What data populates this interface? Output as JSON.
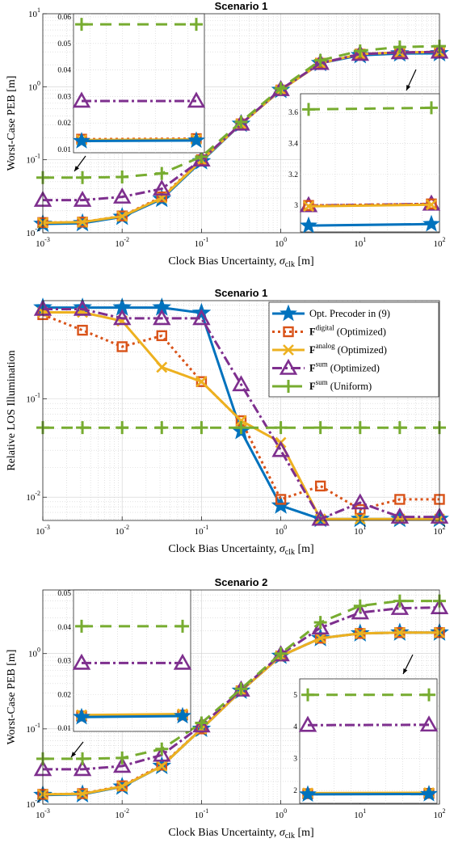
{
  "colors": {
    "opt": "#0072BD",
    "digital": "#D95319",
    "analog": "#EDB120",
    "sum_opt": "#7E2F8E",
    "sum_uni": "#77AC30"
  },
  "legend": {
    "items": [
      {
        "key": "opt",
        "main": "Opt. Precoder in (9)",
        "sup": "",
        "suffix": ""
      },
      {
        "key": "digital",
        "main": "F",
        "sup": "digital",
        "suffix": " (Optimized)"
      },
      {
        "key": "analog",
        "main": "F",
        "sup": "analog",
        "suffix": " (Optimized)"
      },
      {
        "key": "sum_opt",
        "main": "F",
        "sup": "sum",
        "suffix": " (Optimized)"
      },
      {
        "key": "sum_uni",
        "main": "F",
        "sup": "sum",
        "suffix": " (Uniform)"
      }
    ]
  },
  "chart_data": [
    {
      "type": "line",
      "title": "Scenario 1",
      "xlabel": "Clock Bias Uncertainty, σ_clk [m]",
      "ylabel": "Worst-Case PEB [m]",
      "x_scale": "log",
      "y_scale": "log",
      "xlim": [
        0.001,
        100
      ],
      "ylim": [
        0.01,
        10
      ],
      "x_ticks": [
        0.001,
        0.01,
        0.1,
        1,
        10,
        100
      ],
      "y_ticks": [
        0.01,
        0.1,
        1,
        10
      ],
      "grid": true,
      "x": [
        0.001,
        0.00316,
        0.01,
        0.0316,
        0.1,
        0.316,
        1,
        3.16,
        10,
        31.6,
        100
      ],
      "series": [
        {
          "key": "opt",
          "marker": "star",
          "values": [
            0.0132,
            0.0135,
            0.0165,
            0.029,
            0.095,
            0.31,
            0.9,
            2.1,
            2.7,
            2.85,
            2.87
          ]
        },
        {
          "key": "digital",
          "marker": "square",
          "values": [
            0.0138,
            0.014,
            0.017,
            0.031,
            0.1,
            0.31,
            0.9,
            2.1,
            2.8,
            2.95,
            3.0
          ]
        },
        {
          "key": "analog",
          "marker": "x",
          "values": [
            0.0137,
            0.014,
            0.0168,
            0.03,
            0.098,
            0.31,
            0.9,
            2.1,
            2.8,
            2.95,
            3.0
          ]
        },
        {
          "key": "sum_opt",
          "marker": "triangle",
          "values": [
            0.028,
            0.028,
            0.031,
            0.04,
            0.1,
            0.31,
            0.92,
            2.1,
            2.8,
            2.95,
            3.0
          ]
        },
        {
          "key": "sum_uni",
          "marker": "plus",
          "values": [
            0.057,
            0.057,
            0.058,
            0.065,
            0.11,
            0.33,
            0.95,
            2.3,
            3.1,
            3.5,
            3.6
          ]
        }
      ],
      "insets": [
        {
          "y_scale": "linear",
          "ylim": [
            0.01,
            0.06
          ],
          "y_ticks": [
            0.01,
            0.02,
            0.03,
            0.04,
            0.05,
            0.06
          ],
          "series": [
            {
              "key": "sum_uni",
              "values": [
                0.0572,
                0.0572
              ]
            },
            {
              "key": "sum_opt",
              "values": [
                0.0283,
                0.0283
              ]
            },
            {
              "key": "digital",
              "values": [
                0.0139,
                0.0141
              ]
            },
            {
              "key": "analog",
              "values": [
                0.0136,
                0.0138
              ]
            },
            {
              "key": "opt",
              "values": [
                0.0132,
                0.0134
              ]
            }
          ]
        },
        {
          "y_scale": "linear",
          "ylim": [
            2.85,
            3.7
          ],
          "y_ticks": [
            3.0,
            3.2,
            3.4,
            3.6
          ],
          "series": [
            {
              "key": "sum_uni",
              "values": [
                3.62,
                3.63
              ]
            },
            {
              "key": "sum_opt",
              "values": [
                3.0,
                3.01
              ]
            },
            {
              "key": "digital",
              "values": [
                3.0,
                3.01
              ]
            },
            {
              "key": "analog",
              "values": [
                2.995,
                3.005
              ]
            },
            {
              "key": "opt",
              "values": [
                2.87,
                2.88
              ]
            }
          ]
        }
      ]
    },
    {
      "type": "line",
      "title": "Scenario 1",
      "xlabel": "Clock Bias Uncertainty, σ_clk [m]",
      "ylabel": "Relative LOS Illumination",
      "x_scale": "log",
      "y_scale": "log",
      "xlim": [
        0.001,
        100
      ],
      "ylim": [
        0.0058,
        1.0
      ],
      "x_ticks": [
        0.001,
        0.01,
        0.1,
        1,
        10,
        100
      ],
      "y_ticks": [
        0.01,
        0.1
      ],
      "grid": true,
      "legend_position": "top-right",
      "x": [
        0.001,
        0.00316,
        0.01,
        0.0316,
        0.1,
        0.316,
        1,
        3.16,
        10,
        31.6,
        100
      ],
      "series": [
        {
          "key": "opt",
          "marker": "star",
          "values": [
            0.85,
            0.85,
            0.85,
            0.85,
            0.75,
            0.047,
            0.0082,
            0.006,
            0.006,
            0.006,
            0.006
          ]
        },
        {
          "key": "digital",
          "marker": "square",
          "values": [
            0.72,
            0.5,
            0.34,
            0.44,
            0.15,
            0.06,
            0.0095,
            0.013,
            0.0075,
            0.0095,
            0.0095
          ]
        },
        {
          "key": "analog",
          "marker": "x",
          "values": [
            0.76,
            0.76,
            0.62,
            0.21,
            0.15,
            0.06,
            0.036,
            0.006,
            0.006,
            0.006,
            0.006
          ]
        },
        {
          "key": "sum_opt",
          "marker": "triangle",
          "values": [
            0.82,
            0.82,
            0.66,
            0.66,
            0.66,
            0.14,
            0.03,
            0.006,
            0.0088,
            0.0063,
            0.0063
          ]
        },
        {
          "key": "sum_uni",
          "marker": "plus",
          "values": [
            0.051,
            0.051,
            0.051,
            0.051,
            0.051,
            0.051,
            0.051,
            0.051,
            0.051,
            0.051,
            0.051
          ]
        }
      ]
    },
    {
      "type": "line",
      "title": "Scenario 2",
      "xlabel": "Clock Bias Uncertainty, σ_clk [m]",
      "ylabel": "Worst-Case PEB [m]",
      "x_scale": "log",
      "y_scale": "log",
      "xlim": [
        0.001,
        100
      ],
      "ylim": [
        0.01,
        7
      ],
      "x_ticks": [
        0.001,
        0.01,
        0.1,
        1,
        10,
        100
      ],
      "y_ticks": [
        0.01,
        0.1,
        1
      ],
      "grid": true,
      "x": [
        0.001,
        0.00316,
        0.01,
        0.0316,
        0.1,
        0.316,
        1,
        3.16,
        10,
        31.6,
        100
      ],
      "series": [
        {
          "key": "opt",
          "marker": "star",
          "values": [
            0.0132,
            0.0135,
            0.017,
            0.032,
            0.1,
            0.32,
            0.93,
            1.6,
            1.85,
            1.9,
            1.9
          ]
        },
        {
          "key": "digital",
          "marker": "square",
          "values": [
            0.0135,
            0.0138,
            0.0175,
            0.033,
            0.1,
            0.32,
            0.93,
            1.6,
            1.85,
            1.9,
            1.9
          ]
        },
        {
          "key": "analog",
          "marker": "x",
          "values": [
            0.0135,
            0.0137,
            0.0172,
            0.032,
            0.1,
            0.32,
            0.93,
            1.6,
            1.85,
            1.9,
            1.9
          ]
        },
        {
          "key": "sum_opt",
          "marker": "triangle",
          "values": [
            0.029,
            0.029,
            0.032,
            0.045,
            0.11,
            0.33,
            0.97,
            2.2,
            3.5,
            4.0,
            4.1
          ]
        },
        {
          "key": "sum_uni",
          "marker": "plus",
          "values": [
            0.04,
            0.04,
            0.041,
            0.054,
            0.12,
            0.34,
            1.0,
            2.6,
            4.3,
            5.0,
            5.0
          ]
        }
      ],
      "insets": [
        {
          "y_scale": "linear",
          "ylim": [
            0.01,
            0.05
          ],
          "y_ticks": [
            0.01,
            0.02,
            0.03,
            0.04,
            0.05
          ],
          "series": [
            {
              "key": "sum_uni",
              "values": [
                0.0402,
                0.0402
              ]
            },
            {
              "key": "sum_opt",
              "values": [
                0.0293,
                0.0293
              ]
            },
            {
              "key": "digital",
              "values": [
                0.0136,
                0.0139
              ]
            },
            {
              "key": "analog",
              "values": [
                0.0139,
                0.0142
              ]
            },
            {
              "key": "opt",
              "values": [
                0.0133,
                0.0136
              ]
            }
          ]
        },
        {
          "y_scale": "linear",
          "ylim": [
            1.7,
            5.4
          ],
          "y_ticks": [
            2,
            3,
            4,
            5
          ],
          "series": [
            {
              "key": "sum_uni",
              "values": [
                5.0,
                5.0
              ]
            },
            {
              "key": "sum_opt",
              "values": [
                4.05,
                4.06
              ]
            },
            {
              "key": "digital",
              "values": [
                1.9,
                1.91
              ]
            },
            {
              "key": "analog",
              "values": [
                1.92,
                1.93
              ]
            },
            {
              "key": "opt",
              "values": [
                1.88,
                1.89
              ]
            }
          ]
        }
      ]
    }
  ]
}
